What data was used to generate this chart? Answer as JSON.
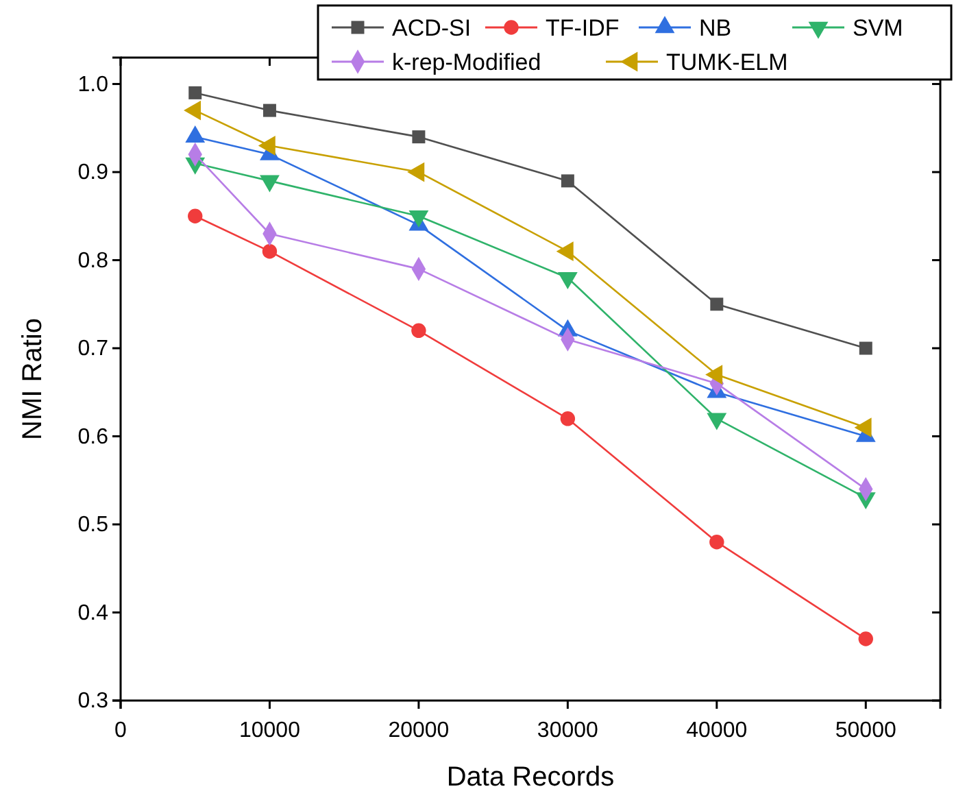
{
  "chart_data": {
    "type": "line",
    "xlabel": "Data Records",
    "ylabel": "NMI Ratio",
    "x": [
      5000,
      10000,
      20000,
      30000,
      40000,
      50000
    ],
    "xlim": [
      0,
      55000
    ],
    "xticks": [
      0,
      10000,
      20000,
      30000,
      40000,
      50000
    ],
    "ylim": [
      0.3,
      1.03
    ],
    "yticks": [
      {
        "value": 0.3,
        "label": "0.3"
      },
      {
        "value": 0.4,
        "label": "0.4"
      },
      {
        "value": 0.5,
        "label": "0.5"
      },
      {
        "value": 0.6,
        "label": "0.6"
      },
      {
        "value": 0.7,
        "label": "0.7"
      },
      {
        "value": 0.8,
        "label": "0.8"
      },
      {
        "value": 0.9,
        "label": "0.9"
      },
      {
        "value": 1.0,
        "label": "1.0"
      }
    ],
    "legend": "top right",
    "grid": false,
    "line_style": "solid",
    "series": [
      {
        "name": "ACD-SI",
        "color": "#505050",
        "marker": "square",
        "values": [
          0.99,
          0.97,
          0.94,
          0.89,
          0.75,
          0.7
        ]
      },
      {
        "name": "TF-IDF",
        "color": "#f03c3c",
        "marker": "circle",
        "values": [
          0.85,
          0.81,
          0.72,
          0.62,
          0.48,
          0.37
        ]
      },
      {
        "name": "NB",
        "color": "#2f6fe0",
        "marker": "triangle",
        "values": [
          0.94,
          0.92,
          0.84,
          0.72,
          0.65,
          0.6
        ]
      },
      {
        "name": "SVM",
        "color": "#2fb36a",
        "marker": "triangle-down",
        "values": [
          0.91,
          0.89,
          0.85,
          0.78,
          0.62,
          0.53
        ]
      },
      {
        "name": "k-rep-Modified",
        "color": "#b77de6",
        "marker": "diamond",
        "values": [
          0.92,
          0.83,
          0.79,
          0.71,
          0.66,
          0.54
        ]
      },
      {
        "name": "TUMK-ELM",
        "color": "#c8a000",
        "marker": "triangle-left",
        "values": [
          0.97,
          0.93,
          0.9,
          0.81,
          0.67,
          0.61
        ]
      }
    ]
  }
}
